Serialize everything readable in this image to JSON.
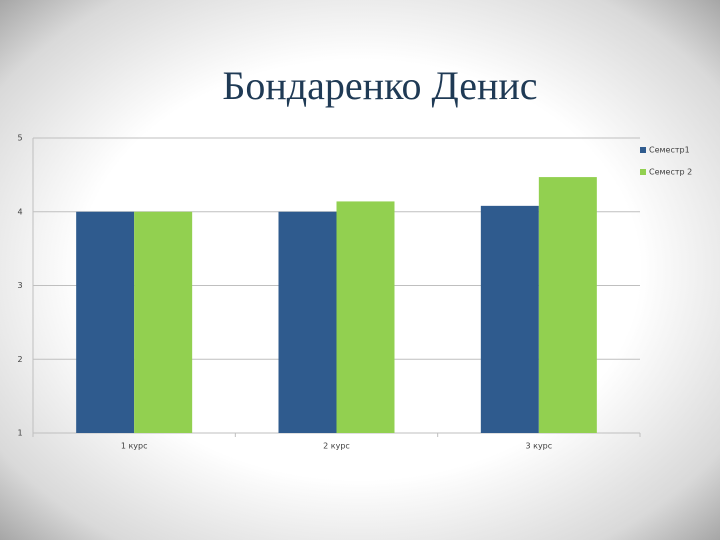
{
  "chart_data": {
    "type": "bar",
    "title": "Бондаренко Денис",
    "categories": [
      "1 курс",
      "2 курс",
      "3 курс"
    ],
    "series": [
      {
        "name": "Семестр1",
        "color": "#2f5b8e",
        "values": [
          4,
          4,
          4.08
        ]
      },
      {
        "name": "Семестр 2",
        "color": "#92d050",
        "values": [
          4,
          4.14,
          4.47
        ]
      }
    ],
    "ylim": [
      1,
      5
    ],
    "yticks": [
      1,
      2,
      3,
      4,
      5
    ],
    "grid": true,
    "legend": "right"
  }
}
